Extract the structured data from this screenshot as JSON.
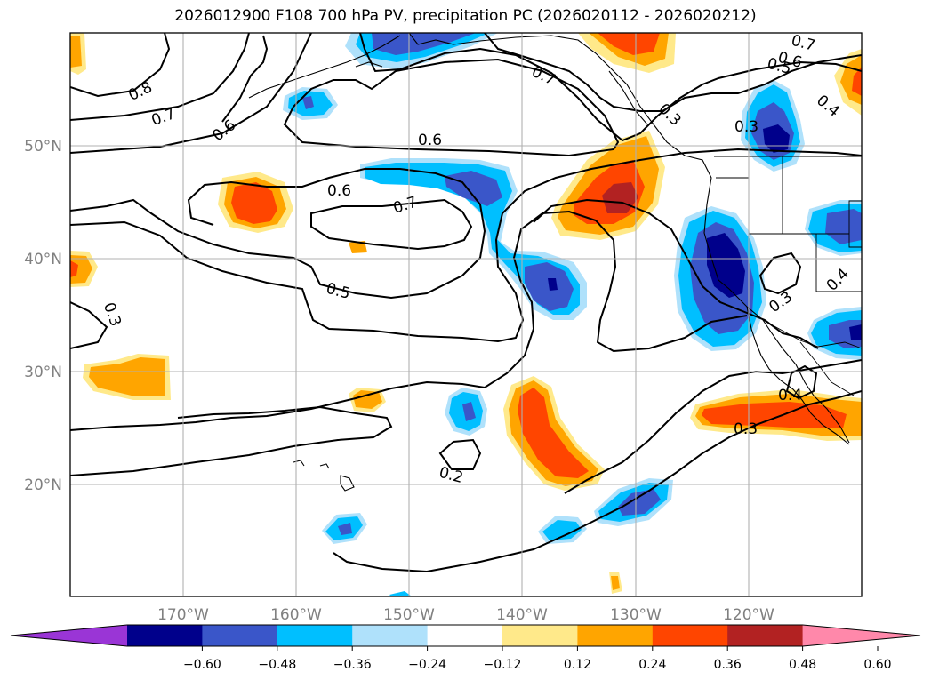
{
  "title": "2026012900 F108 700 hPa PV, precipitation PC (2026020112 - 2026020212)",
  "lat_labels": [
    "50°N",
    "40°N",
    "30°N",
    "20°N"
  ],
  "lon_labels": [
    "170°W",
    "160°W",
    "150°W",
    "140°W",
    "130°W",
    "120°W"
  ],
  "contour_labels": [
    "0.8",
    "0.7",
    "0.6",
    "0.6",
    "0.7",
    "0.6",
    "0.7",
    "0.5",
    "0.6",
    "0.7",
    "0.5",
    "0.4",
    "0.3",
    "0.3",
    "0.3",
    "0.4",
    "0.4",
    "0.3",
    "0.3",
    "0.2"
  ],
  "colorbar": {
    "ticks": [
      "−0.60",
      "−0.48",
      "−0.36",
      "−0.24",
      "−0.12",
      "0.12",
      "0.24",
      "0.36",
      "0.48",
      "0.60"
    ],
    "colors": [
      "#9a35d6",
      "#00008b",
      "#3a56c9",
      "#00bfff",
      "#afe1fb",
      "#ffffff",
      "#ffe98a",
      "#ffa500",
      "#ff4500",
      "#b22222",
      "#ff88aa"
    ]
  }
}
